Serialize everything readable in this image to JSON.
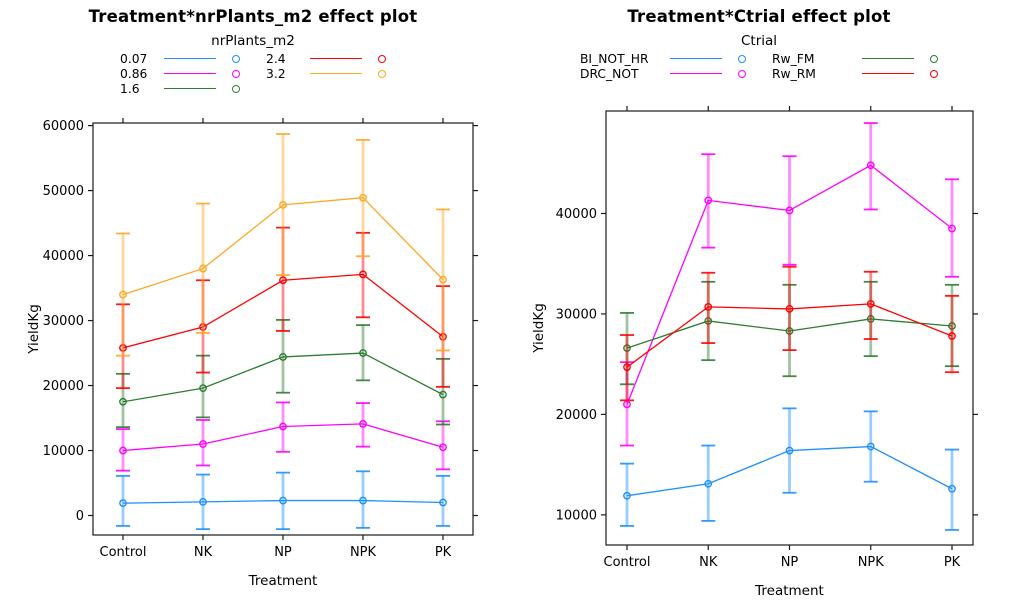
{
  "page": {
    "background": "#ffffff"
  },
  "chart_data": [
    {
      "type": "line",
      "title": "Treatment*nrPlants_m2 effect plot",
      "legend_title": "nrPlants_m2",
      "legend_position": "top",
      "xlabel": "Treatment",
      "ylabel": "YieldKg",
      "categories": [
        "Control",
        "NK",
        "NP",
        "NPK",
        "PK"
      ],
      "yticks": [
        0,
        10000,
        20000,
        30000,
        40000,
        50000,
        60000
      ],
      "ylim": [
        -3000,
        60400
      ],
      "grid": false,
      "error_bars": true,
      "series": [
        {
          "name": "0.07",
          "color": "#1e90ff",
          "values": [
            1900,
            2100,
            2300,
            2300,
            2000
          ],
          "lower": [
            -1600,
            -2100,
            -2100,
            -1900,
            -1600
          ],
          "upper": [
            6100,
            6300,
            6600,
            6800,
            6100
          ]
        },
        {
          "name": "0.86",
          "color": "#ff00ff",
          "values": [
            10000,
            11000,
            13700,
            14100,
            10500
          ],
          "lower": [
            6900,
            7700,
            9800,
            10600,
            7100
          ],
          "upper": [
            13300,
            14700,
            17400,
            17300,
            14500
          ]
        },
        {
          "name": "1.6",
          "color": "#2e7d32",
          "values": [
            17500,
            19600,
            24400,
            25000,
            18600
          ],
          "lower": [
            13600,
            15100,
            18900,
            20800,
            14000
          ],
          "upper": [
            21800,
            24600,
            30100,
            29300,
            24100
          ]
        },
        {
          "name": "2.4",
          "color": "#ff0000",
          "values": [
            25800,
            29000,
            36200,
            37100,
            27500
          ],
          "lower": [
            19600,
            22000,
            28400,
            30500,
            19800
          ],
          "upper": [
            32500,
            36200,
            44300,
            43500,
            35300
          ]
        },
        {
          "name": "3.2",
          "color": "#ffa726",
          "values": [
            34000,
            38000,
            47800,
            48900,
            36300
          ],
          "lower": [
            24600,
            28100,
            37000,
            39900,
            25400
          ],
          "upper": [
            43400,
            48000,
            58700,
            57800,
            47100
          ]
        }
      ]
    },
    {
      "type": "line",
      "title": "Treatment*Ctrial effect plot",
      "legend_title": "Ctrial",
      "legend_position": "top",
      "xlabel": "Treatment",
      "ylabel": "YieldKg",
      "categories": [
        "Control",
        "NK",
        "NP",
        "NPK",
        "PK"
      ],
      "yticks": [
        10000,
        20000,
        30000,
        40000
      ],
      "ylim": [
        7000,
        50200
      ],
      "grid": false,
      "error_bars": true,
      "series": [
        {
          "name": "BI_NOT_HR",
          "color": "#1e90ff",
          "values": [
            11900,
            13100,
            16400,
            16800,
            12600
          ],
          "lower": [
            8900,
            9400,
            12200,
            13300,
            8500
          ],
          "upper": [
            15100,
            16900,
            20600,
            20300,
            16500
          ]
        },
        {
          "name": "DRC_NOT",
          "color": "#ff00ff",
          "values": [
            21000,
            41300,
            40300,
            44800,
            38500
          ],
          "lower": [
            16900,
            36600,
            34900,
            40400,
            33700
          ],
          "upper": [
            25200,
            45900,
            45700,
            49000,
            43400
          ]
        },
        {
          "name": "Rw_FM",
          "color": "#2e7d32",
          "values": [
            26600,
            29300,
            28300,
            29500,
            28800
          ],
          "lower": [
            23000,
            25400,
            23800,
            25800,
            24800
          ],
          "upper": [
            30100,
            33200,
            32900,
            33200,
            32900
          ]
        },
        {
          "name": "Rw_RM",
          "color": "#ff0000",
          "values": [
            24700,
            30700,
            30500,
            31000,
            27800
          ],
          "lower": [
            21400,
            27100,
            26400,
            27500,
            24200
          ],
          "upper": [
            27900,
            34100,
            34700,
            34200,
            31800
          ]
        }
      ]
    }
  ]
}
